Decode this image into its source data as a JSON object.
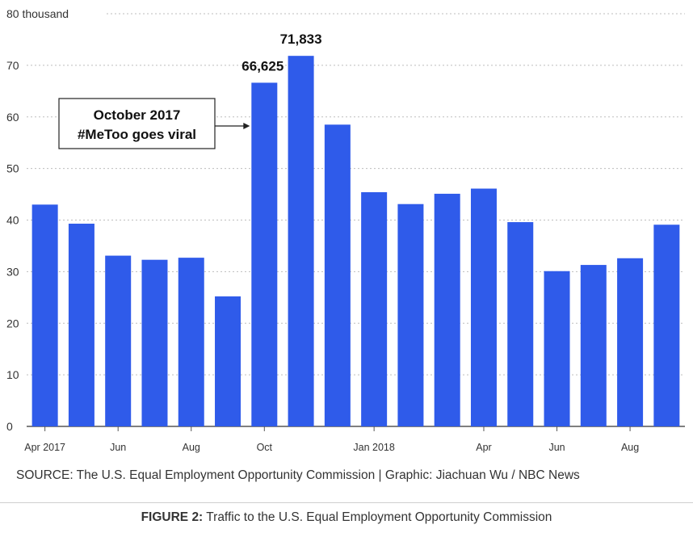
{
  "chart_data": {
    "type": "bar",
    "y_unit_label": "80 thousand",
    "ylim": [
      0,
      80
    ],
    "y_ticks": [
      0,
      10,
      20,
      30,
      40,
      50,
      60,
      70
    ],
    "grid": true,
    "bar_color": "#2f5bea",
    "categories": [
      "Apr 2017",
      "May 2017",
      "Jun 2017",
      "Jul 2017",
      "Aug 2017",
      "Sep 2017",
      "Oct 2017",
      "Nov 2017",
      "Dec 2017",
      "Jan 2018",
      "Feb 2018",
      "Mar 2018",
      "Apr 2018",
      "May 2018",
      "Jun 2018",
      "Jul 2018",
      "Aug 2018",
      "Sep 2018"
    ],
    "values": [
      43.0,
      39.3,
      33.1,
      32.3,
      32.7,
      25.2,
      66.625,
      71.833,
      58.5,
      45.4,
      43.1,
      45.1,
      46.1,
      39.6,
      30.1,
      31.3,
      32.6,
      39.1
    ],
    "x_tick_labels": [
      {
        "index": 0,
        "label": "Apr 2017"
      },
      {
        "index": 2,
        "label": "Jun"
      },
      {
        "index": 4,
        "label": "Aug"
      },
      {
        "index": 6,
        "label": "Oct"
      },
      {
        "index": 9,
        "label": "Jan 2018"
      },
      {
        "index": 12,
        "label": "Apr"
      },
      {
        "index": 14,
        "label": "Jun"
      },
      {
        "index": 16,
        "label": "Aug"
      }
    ],
    "data_labels": [
      {
        "index": 6,
        "label": "66,625"
      },
      {
        "index": 7,
        "label": "71,833"
      }
    ],
    "annotation": {
      "line1": "October 2017",
      "line2": "#MeToo goes viral",
      "points_to_index": 6
    }
  },
  "source_text": "SOURCE: The U.S. Equal Employment Opportunity Commission  |  Graphic: Jiachuan Wu / NBC News",
  "figure": {
    "label": "FIGURE 2:",
    "text": " Traffic to the U.S. Equal Employment Opportunity Commission"
  }
}
